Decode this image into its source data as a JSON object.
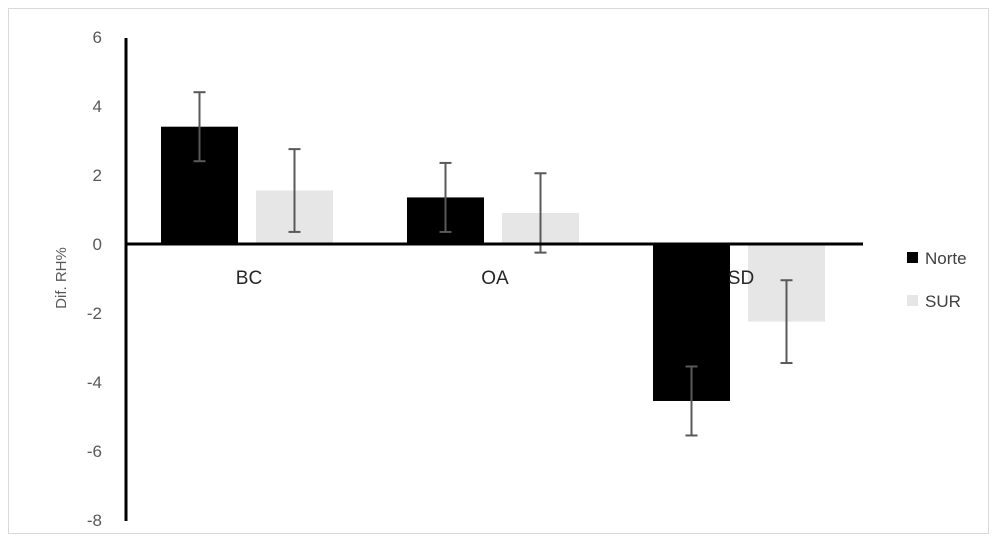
{
  "chart_data": {
    "type": "bar",
    "title": "",
    "xlabel": "",
    "ylabel": "Dif. RH%",
    "ylim": [
      -8,
      6
    ],
    "yticks": [
      "6",
      "4",
      "2",
      "0",
      "-2",
      "-4",
      "-6",
      "-8"
    ],
    "ytick_values": [
      6,
      4,
      2,
      0,
      -2,
      -4,
      -6,
      -8
    ],
    "categories": [
      "BC",
      "OA",
      "SD"
    ],
    "series": [
      {
        "name": "Norte",
        "color": "#000000",
        "values": [
          3.4,
          1.35,
          -4.55
        ],
        "error": [
          1.0,
          1.0,
          1.0
        ]
      },
      {
        "name": "SUR",
        "color": "#e6e6e6",
        "values": [
          1.55,
          0.9,
          -2.25
        ],
        "error": [
          1.2,
          1.15,
          1.2
        ]
      }
    ],
    "grid": false,
    "legend_position": "right"
  }
}
